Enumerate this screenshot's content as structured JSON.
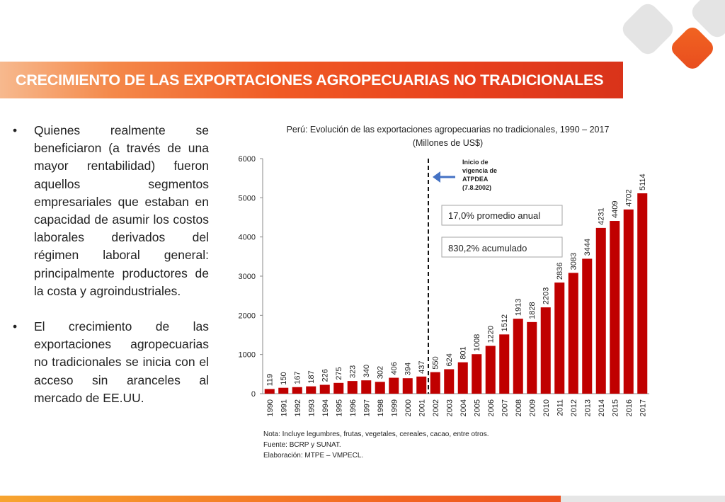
{
  "slide": {
    "title": "CRECIMIENTO DE LAS EXPORTACIONES AGROPECUARIAS NO TRADICIONALES",
    "bullets": [
      "Quienes realmente se beneficiaron (a través de una mayor rentabilidad) fueron aquellos segmentos empresariales que estaban en capacidad de asumir los costos laborales derivados del régimen laboral general: principalmente productores de la costa y agroindustriales.",
      "El crecimiento de las exportaciones agropecuarias no tradicionales se inicia con el acceso sin aranceles al mercado de EE.UU."
    ],
    "bullet_glyph": "•",
    "notes": [
      "Nota: Incluye legumbres, frutas, vegetales, cereales, cacao, entre otros.",
      "Fuente: BCRP y SUNAT.",
      "Elaboración: MTPE – VMPECL."
    ],
    "colors": {
      "accent": "#f05a24",
      "bar": "#c00000"
    }
  },
  "chart_data": {
    "type": "bar",
    "title": "Perú: Evolución de las exportaciones agropecuarias no tradicionales, 1990 – 2017",
    "subtitle": "(Millones de US$)",
    "xlabel": "",
    "ylabel": "",
    "ylim": [
      0,
      6000
    ],
    "yticks": [
      0,
      1000,
      2000,
      3000,
      4000,
      5000,
      6000
    ],
    "grid": false,
    "categories": [
      "1990",
      "1991",
      "1992",
      "1993",
      "1994",
      "1995",
      "1996",
      "1997",
      "1998",
      "1999",
      "2000",
      "2001",
      "2002",
      "2003",
      "2004",
      "2005",
      "2006",
      "2007",
      "2008",
      "2009",
      "2010",
      "2011",
      "2012",
      "2013",
      "2014",
      "2015",
      "2016",
      "2017"
    ],
    "values": [
      119,
      150,
      167,
      187,
      226,
      275,
      323,
      340,
      302,
      406,
      394,
      437,
      550,
      624,
      801,
      1008,
      1220,
      1512,
      1913,
      1828,
      2203,
      2836,
      3083,
      3444,
      4231,
      4409,
      4702,
      5114
    ],
    "annotations": {
      "marker_category": "2002",
      "marker_label": [
        "Inicio          de",
        "vigencia        de",
        "ATPDEA",
        "(7.8.2002)"
      ],
      "box1": "17,0% promedio anual",
      "box2": "830,2% acumulado"
    }
  }
}
